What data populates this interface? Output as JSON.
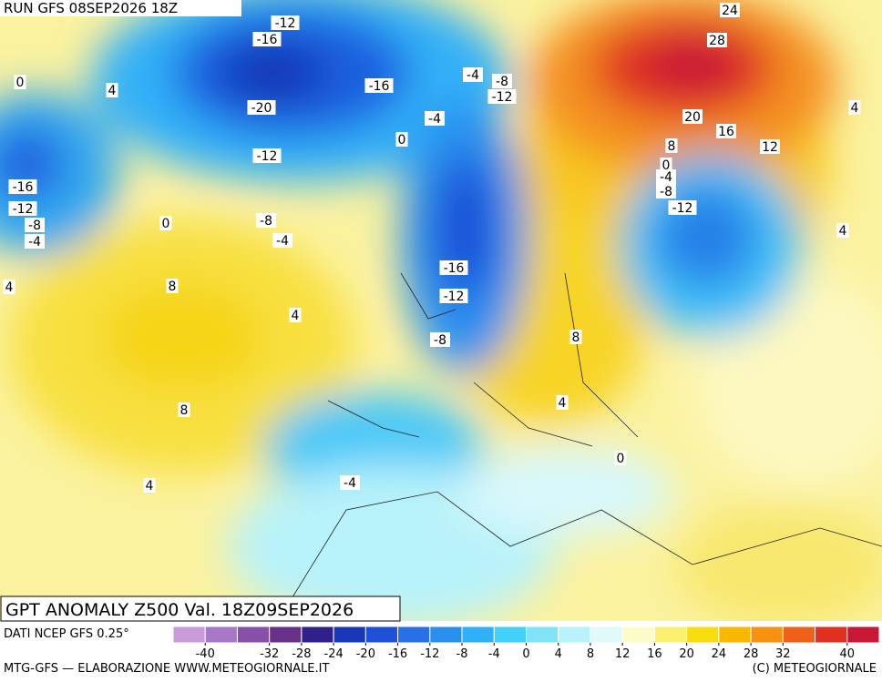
{
  "header": "RUN GFS 08SEP2026 18Z",
  "title": "GPT ANOMALY Z500 Val. 18Z09SEP2026",
  "source": "DATI NCEP GFS 0.25°",
  "footer_left": "MTG-GFS — ELABORAZIONE WWW.METEOGIORNALE.IT",
  "footer_right": "(C) METEOGIORNALE",
  "colorbar": {
    "lim": [
      -44,
      44
    ],
    "colors": [
      "#c89ad8",
      "#a878c8",
      "#8850a8",
      "#683088",
      "#30208a",
      "#1838b8",
      "#1e50d8",
      "#2870e8",
      "#2a90f0",
      "#30b0f8",
      "#40d0f8",
      "#80e4f8",
      "#b8f2fa",
      "#e0fafc",
      "#fdfbc8",
      "#fbf070",
      "#f8dc10",
      "#f8b800",
      "#f89010",
      "#f06018",
      "#e03020",
      "#c81838"
    ],
    "ticks": [
      -40,
      -32,
      -28,
      -24,
      -20,
      -16,
      -12,
      -8,
      -4,
      0,
      4,
      8,
      12,
      16,
      20,
      24,
      28,
      32,
      40
    ]
  },
  "contour_labels": [
    -12,
    -16,
    -20,
    -16,
    -12,
    -8,
    -4,
    0,
    4,
    -16,
    -12,
    -8,
    -4,
    0,
    4,
    8,
    4,
    8,
    4,
    -4,
    -4,
    0,
    -4,
    -8,
    -12,
    -16,
    -12,
    -8,
    8,
    4,
    0,
    24,
    28,
    20,
    16,
    12,
    8,
    0,
    -4,
    -8,
    -12,
    4,
    4
  ]
}
